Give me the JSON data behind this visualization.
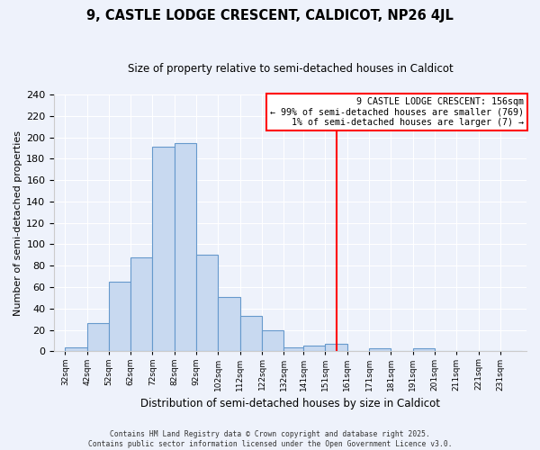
{
  "title": "9, CASTLE LODGE CRESCENT, CALDICOT, NP26 4JL",
  "subtitle": "Size of property relative to semi-detached houses in Caldicot",
  "xlabel": "Distribution of semi-detached houses by size in Caldicot",
  "ylabel": "Number of semi-detached properties",
  "bin_labels": [
    "32sqm",
    "42sqm",
    "52sqm",
    "62sqm",
    "72sqm",
    "82sqm",
    "92sqm",
    "102sqm",
    "112sqm",
    "122sqm",
    "132sqm",
    "141sqm",
    "151sqm",
    "161sqm",
    "171sqm",
    "181sqm",
    "191sqm",
    "201sqm",
    "211sqm",
    "221sqm",
    "231sqm"
  ],
  "bar_heights": [
    4,
    26,
    65,
    88,
    191,
    195,
    90,
    51,
    33,
    20,
    4,
    5,
    7,
    0,
    3,
    0,
    3,
    0,
    0,
    0,
    0
  ],
  "bar_color": "#c8d9f0",
  "bar_edge_color": "#6699cc",
  "vline_x": 156,
  "vline_color": "red",
  "annotation_title": "9 CASTLE LODGE CRESCENT: 156sqm",
  "annotation_line1": "← 99% of semi-detached houses are smaller (769)",
  "annotation_line2": "1% of semi-detached houses are larger (7) →",
  "ylim": [
    0,
    240
  ],
  "yticks": [
    0,
    20,
    40,
    60,
    80,
    100,
    120,
    140,
    160,
    180,
    200,
    220,
    240
  ],
  "footer1": "Contains HM Land Registry data © Crown copyright and database right 2025.",
  "footer2": "Contains public sector information licensed under the Open Government Licence v3.0.",
  "bg_color": "#eef2fb",
  "plot_bg_color": "#eef2fb",
  "grid_color": "#ffffff"
}
